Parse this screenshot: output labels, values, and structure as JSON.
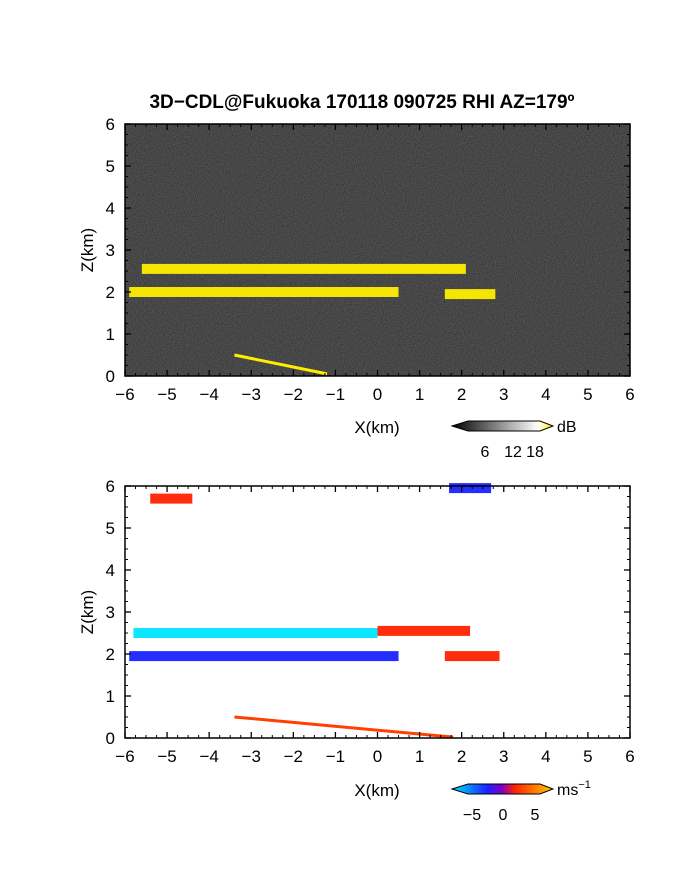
{
  "colors": {
    "panel_background_top": "#2a2a2a",
    "echo_yellow": "#ffee00",
    "velocity_negative_far": "#1a22ff",
    "velocity_negative_near": "#00e5ff",
    "velocity_positive_near": "#ff2200",
    "velocity_positive_far": "#ffcc00"
  },
  "chart_data": [
    {
      "type": "heatmap",
      "panel": "top",
      "title": "3D−CDL@Fukuoka 170118 090725 RHI AZ=179º",
      "xlabel": "X(km)",
      "ylabel": "Z(km)",
      "xlim": [
        -6,
        6
      ],
      "ylim": [
        0,
        6
      ],
      "xticks": [
        "−6",
        "−5",
        "−4",
        "−3",
        "−2",
        "−1",
        "0",
        "1",
        "2",
        "3",
        "4",
        "5",
        "6"
      ],
      "yticks": [
        "0",
        "1",
        "2",
        "3",
        "4",
        "5",
        "6"
      ],
      "colorbar": {
        "unit": "dB",
        "ticks": [
          "6",
          "12",
          "18"
        ]
      },
      "features": [
        {
          "name": "layer_2.6km",
          "x": [
            -5.6,
            2.1
          ],
          "z": 2.55,
          "value_db": 18
        },
        {
          "name": "layer_2.0km",
          "x": [
            -5.9,
            0.5
          ],
          "z": 2.0,
          "value_db": 18
        },
        {
          "name": "layer_2.0km_east",
          "x": [
            1.6,
            2.8
          ],
          "z": 1.95,
          "value_db": 18
        },
        {
          "name": "ground_clutter",
          "x": [
            -3.4,
            -1.2
          ],
          "z": [
            0.5,
            0.05
          ],
          "value_db": 18
        }
      ]
    },
    {
      "type": "heatmap",
      "panel": "bottom",
      "xlabel": "X(km)",
      "ylabel": "Z(km)",
      "xlim": [
        -6,
        6
      ],
      "ylim": [
        0,
        6
      ],
      "xticks": [
        "−6",
        "−5",
        "−4",
        "−3",
        "−2",
        "−1",
        "0",
        "1",
        "2",
        "3",
        "4",
        "5",
        "6"
      ],
      "yticks": [
        "0",
        "1",
        "2",
        "3",
        "4",
        "5",
        "6"
      ],
      "colorbar": {
        "unit": "ms",
        "unit_sup": "−1",
        "ticks": [
          "−5",
          "0",
          "5"
        ]
      },
      "features": [
        {
          "name": "layer_2.6km_west",
          "x": [
            -5.8,
            0
          ],
          "z": 2.5,
          "velocity": -5
        },
        {
          "name": "layer_2.6km_east",
          "x": [
            0,
            2.2
          ],
          "z": 2.55,
          "velocity": 3
        },
        {
          "name": "layer_2.0km",
          "x": [
            -5.9,
            0.5
          ],
          "z": 1.95,
          "velocity": -3
        },
        {
          "name": "layer_2.0km_east",
          "x": [
            1.6,
            2.9
          ],
          "z": 1.95,
          "velocity": 3
        },
        {
          "name": "top_left_patch",
          "x": [
            -5.4,
            -4.4
          ],
          "z": 5.7,
          "velocity": 3
        },
        {
          "name": "top_right_patch",
          "x": [
            1.7,
            2.7
          ],
          "z": 5.95,
          "velocity": -3
        },
        {
          "name": "ground_clutter",
          "x": [
            -3.4,
            1.8
          ],
          "z": [
            0.5,
            0.02
          ],
          "velocity": 0
        }
      ]
    }
  ]
}
